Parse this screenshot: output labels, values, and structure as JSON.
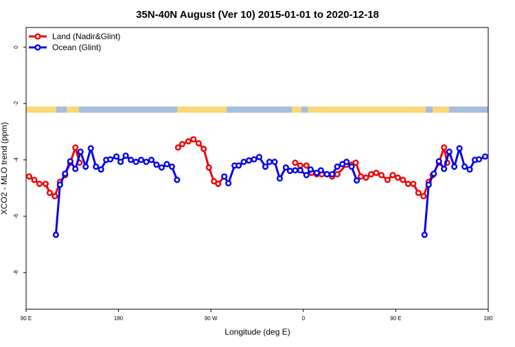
{
  "chart_data": {
    "type": "line",
    "title": "35N-40N August (Ver 10)   2015-01-01 to 2020-12-18",
    "x_label": "Longitude (deg E)",
    "y_label": "XCO2 - MLO trend (ppm)",
    "xlim": [
      90,
      540
    ],
    "ylim": [
      -9.3,
      0.7
    ],
    "xticks": [
      {
        "value": 90,
        "label": "90 E"
      },
      {
        "value": 180,
        "label": "180"
      },
      {
        "value": 270,
        "label": "90 W"
      },
      {
        "value": 360,
        "label": "0"
      },
      {
        "value": 450,
        "label": "90 E"
      },
      {
        "value": 540,
        "label": "180"
      }
    ],
    "yticks": [
      0,
      -2,
      -4,
      -6,
      -8
    ],
    "legend": "top-left",
    "series": [
      {
        "name": "Land (Nadir&Glint)",
        "color": "#ee0000",
        "x": [
          93,
          98,
          103,
          109,
          113,
          118,
          123,
          128,
          133,
          138,
          142,
          null,
          238,
          242,
          248,
          253,
          258,
          263,
          268,
          273,
          277,
          283,
          null,
          352,
          357,
          363,
          368,
          373,
          378,
          383,
          388,
          393,
          402,
          407,
          411,
          416,
          421,
          426,
          431,
          436,
          442,
          447,
          452,
          457,
          462,
          467,
          472,
          477,
          482,
          486,
          492,
          497,
          500
        ],
        "values": [
          -4.59,
          -4.71,
          -4.85,
          -4.85,
          -5.17,
          -5.29,
          -4.78,
          -4.54,
          -4.1,
          -3.56,
          -4.1,
          null,
          -3.56,
          -3.44,
          -3.34,
          -3.27,
          -3.41,
          -3.61,
          -4.27,
          -4.76,
          -4.85,
          -4.59,
          null,
          -4.1,
          -4.2,
          -4.2,
          -4.46,
          -4.51,
          -4.51,
          -4.51,
          -4.59,
          -4.51,
          -4.17,
          -4.17,
          -4.1,
          -4.59,
          -4.63,
          -4.51,
          -4.46,
          -4.54,
          -4.71,
          -4.54,
          -4.63,
          -4.71,
          -4.85,
          -4.85,
          -5.17,
          -5.29,
          -4.78,
          -4.54,
          -4.1,
          -3.56,
          -4.1
        ]
      },
      {
        "name": "Ocean (Glint)",
        "color": "#0000ee",
        "x": [
          119,
          123,
          128,
          133,
          138,
          143,
          148,
          153,
          158,
          163,
          168,
          172,
          178,
          182,
          187,
          192,
          197,
          202,
          207,
          212,
          217,
          222,
          227,
          232,
          237,
          null,
          283,
          287,
          293,
          297,
          302,
          307,
          312,
          317,
          323,
          327,
          332,
          337,
          343,
          347,
          352,
          357,
          363,
          367,
          373,
          377,
          383,
          388,
          393,
          398,
          402,
          407,
          412,
          null,
          478,
          482,
          487,
          492,
          497,
          502,
          507,
          512,
          517,
          522,
          527,
          531,
          537
        ],
        "values": [
          -6.66,
          -4.88,
          -4.49,
          -4.05,
          -4.32,
          -3.71,
          -4.24,
          -3.59,
          -4.24,
          -4.34,
          -4.0,
          -3.98,
          -3.88,
          -4.07,
          -3.85,
          -4.0,
          -4.07,
          -4.0,
          -4.07,
          -4.0,
          -4.17,
          -4.27,
          -4.15,
          -4.24,
          -4.71,
          null,
          -4.59,
          -4.83,
          -4.2,
          -4.2,
          -4.07,
          -4.02,
          -3.98,
          -3.9,
          -4.24,
          -4.07,
          -4.07,
          -4.66,
          -4.27,
          -4.39,
          -4.37,
          -4.37,
          -4.54,
          -4.34,
          -4.46,
          -4.37,
          -4.51,
          -4.51,
          -4.24,
          -4.15,
          -4.07,
          -4.24,
          -4.73,
          null,
          -6.66,
          -4.88,
          -4.49,
          -4.05,
          -4.32,
          -3.71,
          -4.24,
          -3.59,
          -4.24,
          -4.34,
          -4.0,
          -3.98,
          -3.88
        ]
      }
    ]
  }
}
